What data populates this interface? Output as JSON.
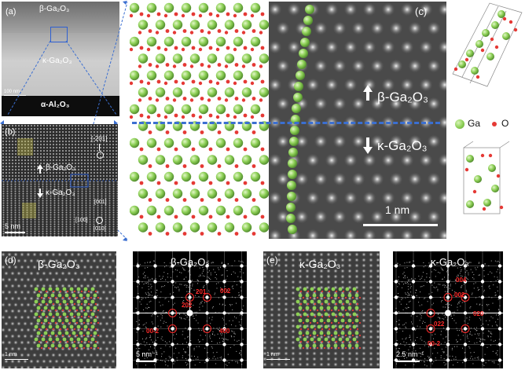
{
  "panel_a": {
    "letter": "(a)",
    "layer_top": "β-Ga₂O₃",
    "layer_mid": "κ-Ga₂O₃",
    "layer_bottom": "α-Al₂O₃",
    "scale": "100 nm"
  },
  "panel_b": {
    "letter": "(b)",
    "dir_top": "[-201]",
    "beta_label": "β-Ga₂O₃",
    "kappa_label": "κ-Ga₂O₃",
    "dir_001": "[001]",
    "dir_100": "[100]",
    "dir_010": "[010]",
    "scale": "5 nm"
  },
  "panel_c": {
    "letter": "(c)",
    "beta_label": "β-Ga₂O₃",
    "kappa_label": "κ-Ga₂O₃",
    "scale": "1 nm",
    "legend_ga": "Ga",
    "legend_o": "O"
  },
  "panel_d": {
    "letter": "(d)",
    "title": "β-Ga₂O₃",
    "scale": "1 nm"
  },
  "panel_d_fft": {
    "title": "β-Ga₂O₃",
    "scale": "5 nm⁻¹",
    "spots": [
      "201",
      "002",
      "202",
      "00-2",
      "400"
    ]
  },
  "panel_e": {
    "letter": "(e)",
    "title": "κ-Ga₂O₃",
    "scale": "1 nm"
  },
  "panel_e_fft": {
    "title": "κ-Ga₂O₃",
    "scale": "2.5 nm⁻¹",
    "spots": [
      "004",
      "002",
      "020",
      "022",
      "00-2"
    ]
  },
  "colors": {
    "ga_atom": "#8ccf55",
    "o_atom": "#e53935",
    "dash_line": "#3b6fd1",
    "spot_label": "#ff2a2a"
  }
}
